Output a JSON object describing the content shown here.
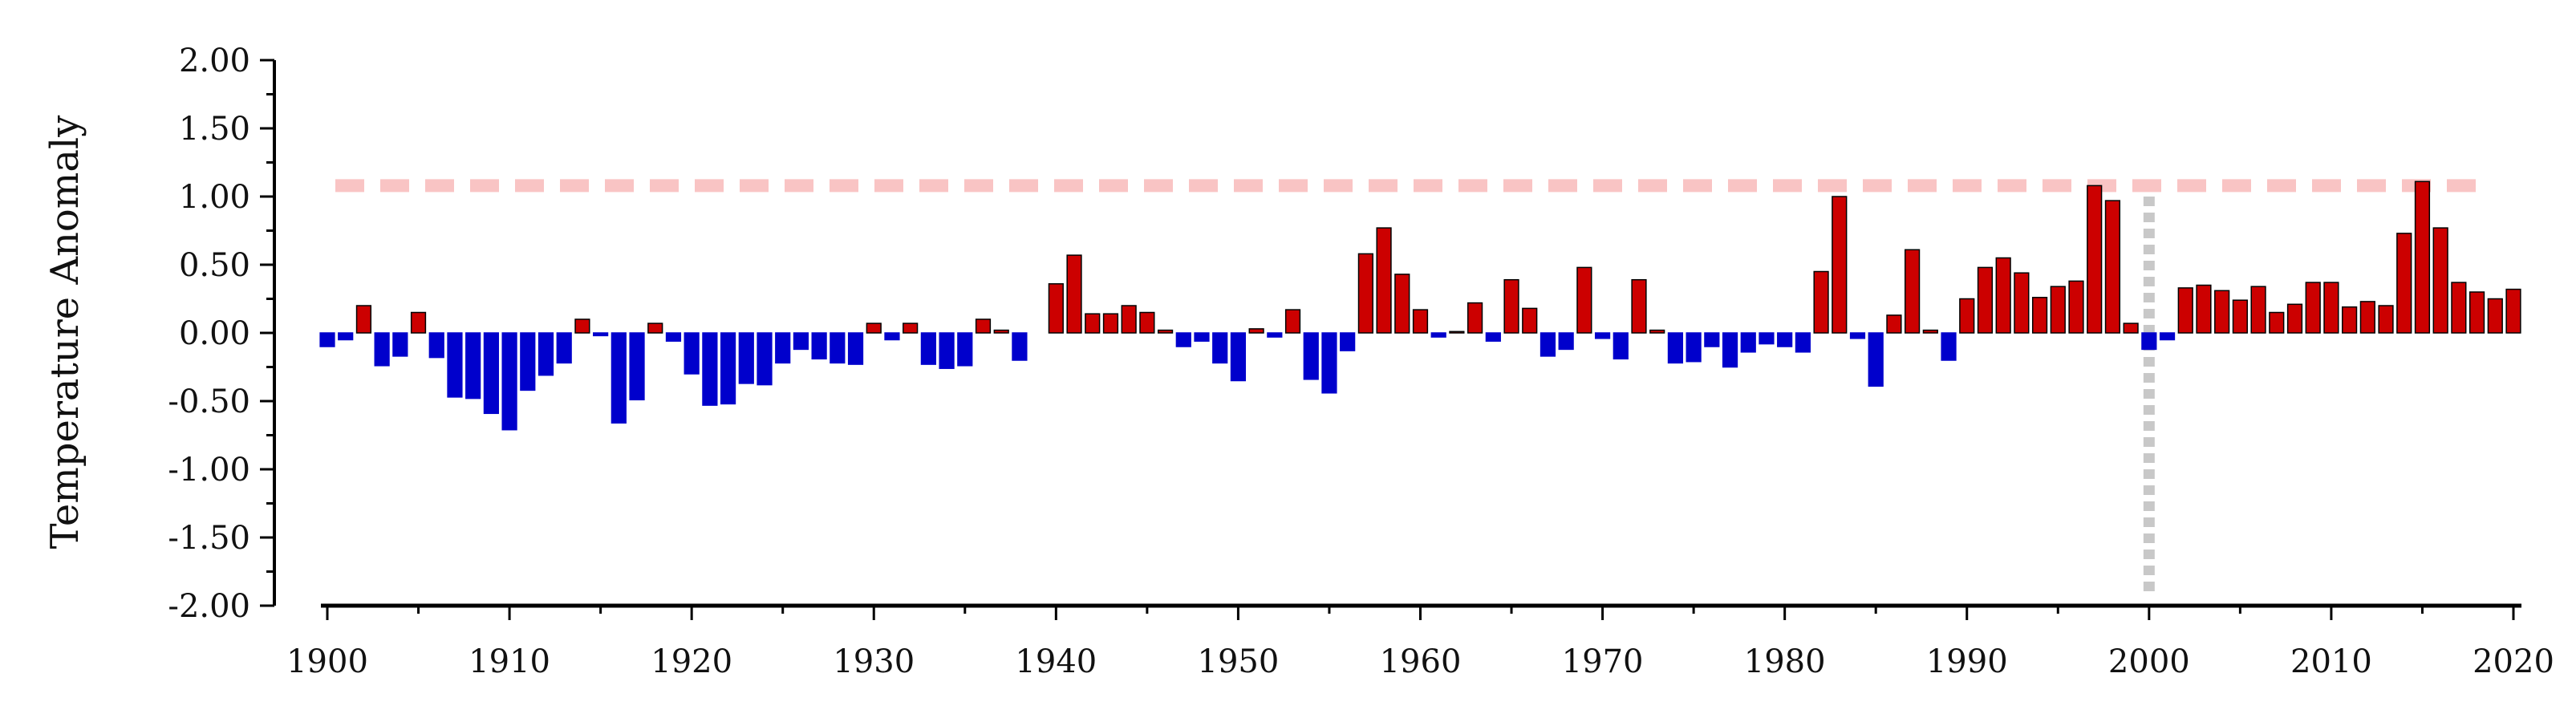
{
  "chart_data": {
    "type": "bar",
    "title": "",
    "xlabel": "",
    "ylabel": "Temperature Anomaly",
    "xlim": [
      1900,
      2020
    ],
    "ylim": [
      -2.0,
      2.0
    ],
    "grid": false,
    "legend": "none",
    "x_ticks": [
      "1900",
      "1910",
      "1920",
      "1930",
      "1940",
      "1950",
      "1960",
      "1970",
      "1980",
      "1990",
      "2000",
      "2010",
      "2020"
    ],
    "y_ticks": [
      "2.00",
      "1.50",
      "1.00",
      "0.50",
      "0.00",
      "-0.50",
      "-1.00",
      "-1.50",
      "-2.00"
    ],
    "x_tick_values": [
      1900,
      1910,
      1920,
      1930,
      1940,
      1950,
      1960,
      1970,
      1980,
      1990,
      2000,
      2010,
      2020
    ],
    "y_tick_values": [
      2.0,
      1.5,
      1.0,
      0.5,
      0.0,
      -0.5,
      -1.0,
      -1.5,
      -2.0
    ],
    "reference_line": {
      "orientation": "horizontal",
      "y": 1.08,
      "style": "dashed",
      "color": "#f9c4c4"
    },
    "marker_line": {
      "orientation": "vertical",
      "x": 2000,
      "style": "dotted",
      "color": "#c8c8c8"
    },
    "colors": {
      "positive": "#cc0000",
      "negative": "#0000cc",
      "positive_edge": "#000000",
      "negative_edge": "#0000cc",
      "axis": "#000000"
    },
    "years": [
      1900,
      1901,
      1902,
      1903,
      1904,
      1905,
      1906,
      1907,
      1908,
      1909,
      1910,
      1911,
      1912,
      1913,
      1914,
      1915,
      1916,
      1917,
      1918,
      1919,
      1920,
      1921,
      1922,
      1923,
      1924,
      1925,
      1926,
      1927,
      1928,
      1929,
      1930,
      1931,
      1932,
      1933,
      1934,
      1935,
      1936,
      1937,
      1938,
      1939,
      1940,
      1941,
      1942,
      1943,
      1944,
      1945,
      1946,
      1947,
      1948,
      1949,
      1950,
      1951,
      1952,
      1953,
      1954,
      1955,
      1956,
      1957,
      1958,
      1959,
      1960,
      1961,
      1962,
      1963,
      1964,
      1965,
      1966,
      1967,
      1968,
      1969,
      1970,
      1971,
      1972,
      1973,
      1974,
      1975,
      1976,
      1977,
      1978,
      1979,
      1980,
      1981,
      1982,
      1983,
      1984,
      1985,
      1986,
      1987,
      1988,
      1989,
      1990,
      1991,
      1992,
      1993,
      1994,
      1995,
      1996,
      1997,
      1998,
      1999,
      2000,
      2001,
      2002,
      2003,
      2004,
      2005,
      2006,
      2007,
      2008,
      2009,
      2010,
      2011,
      2012,
      2013,
      2014,
      2015,
      2016,
      2017,
      2018,
      2019,
      2020
    ],
    "values": [
      -0.1,
      -0.05,
      0.2,
      -0.24,
      -0.17,
      0.15,
      -0.18,
      -0.47,
      -0.48,
      -0.59,
      -0.71,
      -0.42,
      -0.31,
      -0.22,
      0.1,
      -0.02,
      -0.66,
      -0.49,
      0.07,
      -0.06,
      -0.3,
      -0.53,
      -0.52,
      -0.37,
      -0.38,
      -0.22,
      -0.12,
      -0.19,
      -0.22,
      -0.23,
      0.07,
      -0.05,
      0.07,
      -0.23,
      -0.26,
      -0.24,
      0.1,
      0.02,
      -0.2,
      0.0,
      0.36,
      0.57,
      0.14,
      0.14,
      0.2,
      0.15,
      0.02,
      -0.1,
      -0.06,
      -0.22,
      -0.35,
      0.03,
      -0.03,
      0.17,
      -0.34,
      -0.44,
      -0.13,
      0.58,
      0.77,
      0.43,
      0.17,
      -0.03,
      0.01,
      0.22,
      -0.06,
      0.39,
      0.18,
      -0.17,
      -0.12,
      0.48,
      -0.04,
      -0.19,
      0.39,
      0.02,
      -0.22,
      -0.21,
      -0.1,
      -0.25,
      -0.14,
      -0.08,
      -0.1,
      -0.14,
      0.45,
      1.0,
      -0.04,
      -0.39,
      0.13,
      0.61,
      0.02,
      -0.2,
      0.25,
      0.48,
      0.55,
      0.44,
      0.26,
      0.34,
      0.38,
      1.08,
      0.97,
      0.07,
      -0.12,
      -0.05,
      0.33,
      0.35,
      0.31,
      0.24,
      0.34,
      0.15,
      0.21,
      0.37,
      0.37,
      0.19,
      0.23,
      0.2,
      0.73,
      1.11,
      0.77,
      0.37,
      0.3,
      0.25,
      0.32
    ]
  }
}
